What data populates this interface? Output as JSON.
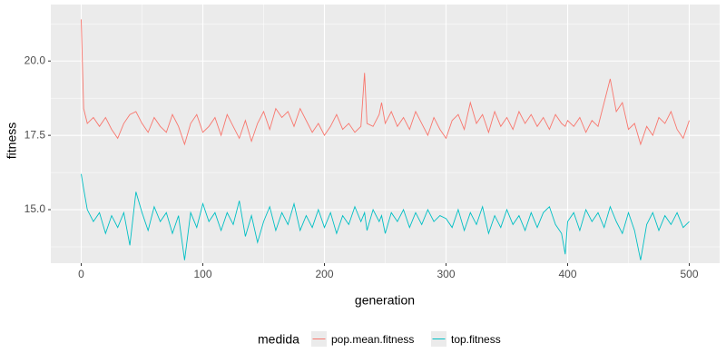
{
  "chart_data": {
    "type": "line",
    "x_label": "generation",
    "y_label": "fitness",
    "legend_title": "medida",
    "legend_position": "bottom",
    "x": [
      0,
      2,
      5,
      10,
      15,
      20,
      25,
      30,
      35,
      40,
      45,
      50,
      55,
      60,
      65,
      70,
      75,
      80,
      85,
      90,
      95,
      100,
      105,
      110,
      115,
      120,
      125,
      130,
      135,
      140,
      145,
      150,
      155,
      160,
      165,
      170,
      175,
      180,
      185,
      190,
      195,
      200,
      205,
      210,
      215,
      220,
      225,
      230,
      233,
      235,
      240,
      245,
      247,
      250,
      255,
      260,
      265,
      270,
      275,
      280,
      285,
      290,
      295,
      300,
      305,
      310,
      315,
      320,
      325,
      330,
      335,
      340,
      345,
      350,
      355,
      360,
      365,
      370,
      375,
      380,
      385,
      390,
      395,
      398,
      400,
      405,
      410,
      415,
      420,
      425,
      430,
      435,
      440,
      445,
      450,
      455,
      460,
      465,
      470,
      475,
      480,
      485,
      490,
      495,
      500
    ],
    "series": [
      {
        "name": "pop.mean.fitness",
        "color": "#F8766D",
        "values": [
          21.4,
          18.4,
          17.9,
          18.1,
          17.8,
          18.1,
          17.7,
          17.4,
          17.9,
          18.2,
          18.3,
          17.9,
          17.6,
          18.1,
          17.8,
          17.6,
          18.2,
          17.8,
          17.2,
          17.9,
          18.2,
          17.6,
          17.8,
          18.1,
          17.5,
          18.2,
          17.8,
          17.4,
          18.0,
          17.3,
          17.9,
          18.3,
          17.7,
          18.4,
          18.1,
          18.3,
          17.8,
          18.4,
          18.0,
          17.6,
          17.9,
          17.5,
          17.8,
          18.2,
          17.7,
          17.9,
          17.6,
          17.8,
          19.6,
          17.9,
          17.8,
          18.2,
          18.6,
          17.9,
          18.3,
          17.8,
          18.1,
          17.7,
          18.3,
          17.9,
          17.5,
          18.1,
          17.7,
          17.4,
          18.0,
          18.2,
          17.7,
          18.6,
          17.9,
          18.2,
          17.6,
          18.3,
          17.8,
          18.1,
          17.7,
          18.3,
          17.9,
          18.2,
          17.8,
          18.1,
          17.7,
          18.2,
          17.9,
          17.8,
          18.0,
          17.8,
          18.1,
          17.6,
          18.0,
          17.8,
          18.6,
          19.4,
          18.3,
          18.6,
          17.7,
          17.9,
          17.2,
          17.8,
          17.5,
          18.1,
          17.9,
          18.3,
          17.7,
          17.4,
          18.0
        ]
      },
      {
        "name": "top.fitness",
        "color": "#00BFC4",
        "values": [
          16.2,
          15.7,
          15.0,
          14.6,
          14.9,
          14.2,
          14.8,
          14.4,
          14.9,
          13.8,
          15.6,
          14.9,
          14.3,
          15.1,
          14.6,
          14.9,
          14.2,
          14.8,
          13.3,
          14.9,
          14.4,
          15.2,
          14.6,
          14.9,
          14.3,
          14.9,
          14.5,
          15.3,
          14.1,
          14.8,
          13.9,
          14.6,
          15.1,
          14.3,
          14.9,
          14.5,
          15.2,
          14.3,
          14.8,
          14.4,
          15.0,
          14.4,
          14.9,
          14.2,
          14.8,
          14.5,
          15.1,
          14.6,
          14.9,
          14.3,
          15.0,
          14.6,
          14.8,
          14.2,
          14.9,
          14.6,
          15.0,
          14.4,
          14.9,
          14.5,
          15.0,
          14.6,
          14.8,
          14.7,
          14.4,
          15.0,
          14.3,
          14.9,
          14.5,
          15.1,
          14.2,
          14.8,
          14.4,
          15.0,
          14.5,
          14.8,
          14.3,
          14.9,
          14.4,
          14.9,
          15.1,
          14.5,
          14.2,
          13.5,
          14.6,
          14.9,
          14.3,
          15.0,
          14.6,
          14.9,
          14.4,
          15.1,
          14.6,
          14.2,
          14.9,
          14.3,
          13.3,
          14.5,
          14.9,
          14.3,
          14.8,
          14.5,
          14.9,
          14.4,
          14.6
        ]
      }
    ],
    "xlim": [
      -25,
      525
    ],
    "ylim": [
      13.2,
      21.9
    ],
    "xticks": [
      0,
      100,
      200,
      300,
      400,
      500
    ],
    "yticks": [
      {
        "value": 15,
        "label": "15.0"
      },
      {
        "value": 17.5,
        "label": "17.5"
      },
      {
        "value": 20,
        "label": "20.0"
      }
    ],
    "minor_xticks": [
      50,
      150,
      250,
      350,
      450
    ],
    "minor_yticks": [
      13.75,
      16.25,
      18.75,
      21.25
    ],
    "grid": true
  }
}
